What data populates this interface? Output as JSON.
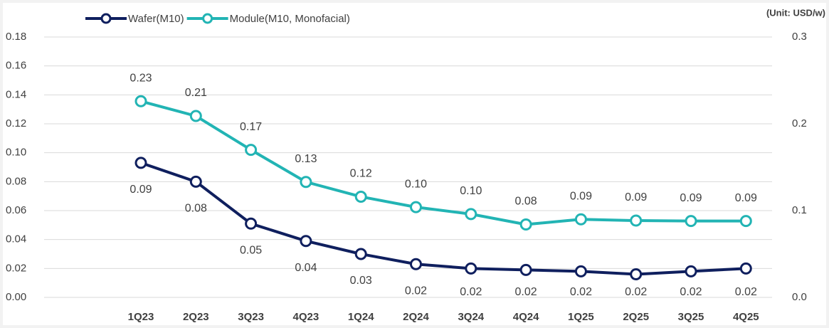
{
  "chart_data": {
    "type": "line",
    "unit_note": "(Unit: USD/w)",
    "categories": [
      "1Q23",
      "2Q23",
      "3Q23",
      "4Q23",
      "1Q24",
      "2Q24",
      "3Q24",
      "4Q24",
      "1Q25",
      "2Q25",
      "3Q25",
      "4Q25"
    ],
    "series": [
      {
        "name": "Wafer(M10)",
        "color": "#0f1f5e",
        "axis": "y",
        "values": [
          0.093,
          0.08,
          0.051,
          0.039,
          0.03,
          0.023,
          0.02,
          0.019,
          0.018,
          0.016,
          0.018,
          0.02
        ],
        "value_labels": [
          "0.09",
          "0.08",
          "0.05",
          "0.04",
          "0.03",
          "0.02",
          "0.02",
          "0.02",
          "0.02",
          "0.02",
          "0.02",
          "0.02"
        ]
      },
      {
        "name": "Module(M10, Monofacial)",
        "color": "#22b4b4",
        "axis": "y2",
        "values": [
          0.226,
          0.209,
          0.17,
          0.133,
          0.116,
          0.104,
          0.096,
          0.084,
          0.09,
          0.0885,
          0.088,
          0.088
        ],
        "value_labels": [
          "0.23",
          "0.21",
          "0.17",
          "0.13",
          "0.12",
          "0.10",
          "0.10",
          "0.08",
          "0.09",
          "0.09",
          "0.09",
          "0.09"
        ]
      }
    ],
    "ylim": [
      0,
      0.18
    ],
    "yticks": [
      {
        "value": 0,
        "label": "0.00"
      },
      {
        "value": 0.02,
        "label": "0.02"
      },
      {
        "value": 0.04,
        "label": "0.04"
      },
      {
        "value": 0.06,
        "label": "0.06"
      },
      {
        "value": 0.08,
        "label": "0.08"
      },
      {
        "value": 0.1,
        "label": "0.10"
      },
      {
        "value": 0.12,
        "label": "0.12"
      },
      {
        "value": 0.14,
        "label": "0.14"
      },
      {
        "value": 0.16,
        "label": "0.16"
      },
      {
        "value": 0.18,
        "label": "0.18"
      }
    ],
    "y2lim": [
      0,
      0.3
    ],
    "y2ticks": [
      {
        "value": 0,
        "label": "0.0"
      },
      0.1,
      0.2,
      0.3
    ],
    "grid": true,
    "legend": "top"
  }
}
